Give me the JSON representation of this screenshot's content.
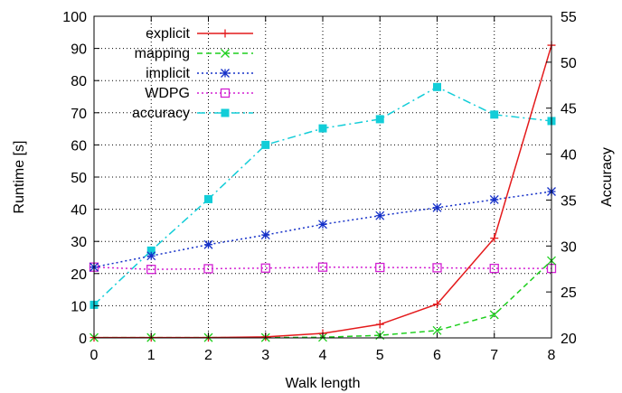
{
  "chart_data": {
    "type": "line",
    "x": [
      0,
      1,
      2,
      3,
      4,
      5,
      6,
      7,
      8
    ],
    "xlabel": "Walk length",
    "ylabel": "Runtime [s]",
    "y2label": "Accuracy",
    "xlim": [
      0,
      8
    ],
    "ylim": [
      0,
      100
    ],
    "y2lim": [
      20,
      55
    ],
    "xticks": [
      0,
      1,
      2,
      3,
      4,
      5,
      6,
      7,
      8
    ],
    "yticks": [
      0,
      10,
      20,
      30,
      40,
      50,
      60,
      70,
      80,
      90,
      100
    ],
    "y2ticks": [
      20,
      25,
      30,
      35,
      40,
      45,
      50,
      55
    ],
    "grid": true,
    "legend_position": "top-left",
    "series": [
      {
        "name": "explicit",
        "axis": "left",
        "color": "#e41a1c",
        "dash": "solid",
        "marker": "plus",
        "values": [
          0.1,
          0.1,
          0.1,
          0.3,
          1.4,
          4.2,
          10.5,
          31,
          91
        ]
      },
      {
        "name": "mapping",
        "axis": "left",
        "color": "#1fcf1f",
        "dash": "dashed",
        "marker": "cross",
        "values": [
          0.1,
          0.1,
          0.1,
          0.1,
          0.2,
          0.8,
          2.3,
          7.2,
          24
        ]
      },
      {
        "name": "implicit",
        "axis": "left",
        "color": "#1530c8",
        "dash": "dotted",
        "marker": "star",
        "values": [
          22,
          25.5,
          29,
          32,
          35.3,
          38,
          40.5,
          43,
          45.5
        ]
      },
      {
        "name": "WDPG",
        "axis": "left",
        "color": "#d21fd2",
        "dash": "dotted",
        "marker": "open-square",
        "values": [
          22,
          21.3,
          21.5,
          21.7,
          22,
          21.9,
          21.8,
          21.6,
          21.6
        ]
      },
      {
        "name": "accuracy",
        "axis": "right",
        "color": "#12cdd8",
        "dash": "dashdot",
        "marker": "filled-square",
        "values": [
          23.6,
          29.5,
          35.1,
          41,
          42.8,
          43.8,
          47.3,
          44.3,
          43.6
        ]
      }
    ]
  }
}
